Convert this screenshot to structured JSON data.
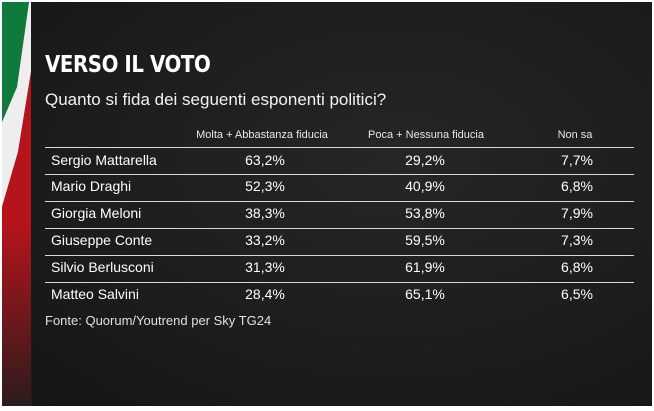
{
  "title": "VERSO IL VOTO",
  "subtitle": "Quanto si fida dei seguenti esponenti politici?",
  "source": "Fonte: Quorum/Youtrend per Sky TG24",
  "colors": {
    "background": "#1c1c1c",
    "flag_green": "#0f7a3a",
    "flag_white": "#eeeeee",
    "flag_red": "#c5161d"
  },
  "chart_data": {
    "type": "table",
    "columns": [
      "",
      "Molta + Abbastanza fiducia",
      "Poca + Nessuna fiducia",
      "Non sa"
    ],
    "rows": [
      {
        "name": "Sergio Mattarella",
        "values": [
          "63,2%",
          "29,2%",
          "7,7%"
        ]
      },
      {
        "name": "Mario Draghi",
        "values": [
          "52,3%",
          "40,9%",
          "6,8%"
        ]
      },
      {
        "name": "Giorgia  Meloni",
        "values": [
          "38,3%",
          "53,8%",
          "7,9%"
        ]
      },
      {
        "name": "Giuseppe Conte",
        "values": [
          "33,2%",
          "59,5%",
          "7,3%"
        ]
      },
      {
        "name": "Silvio Berlusconi",
        "values": [
          "31,3%",
          "61,9%",
          "6,8%"
        ]
      },
      {
        "name": "Matteo Salvini",
        "values": [
          "28,4%",
          "65,1%",
          "6,5%"
        ]
      }
    ]
  }
}
